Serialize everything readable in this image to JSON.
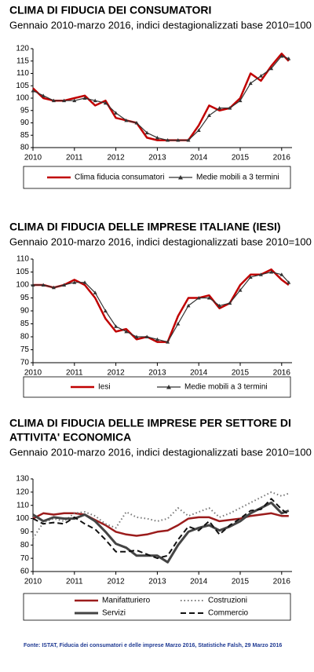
{
  "chart_data": [
    {
      "type": "line",
      "title": [
        "CLIMA DI FIDUCIA DEI CONSUMATORI"
      ],
      "subtitle": "Gennaio 2010-marzo 2016, indici destagionalizzati base 2010=100",
      "x": [
        2010,
        2010.25,
        2010.5,
        2010.75,
        2011,
        2011.25,
        2011.5,
        2011.75,
        2012,
        2012.25,
        2012.5,
        2012.75,
        2013,
        2013.25,
        2013.5,
        2013.75,
        2014,
        2014.25,
        2014.5,
        2014.75,
        2015,
        2015.25,
        2015.5,
        2015.75,
        2016,
        2016.17
      ],
      "series": [
        {
          "name": "Clima fiducia consumatori",
          "color": "#c00000",
          "width": 2.5,
          "values": [
            104,
            100,
            99,
            99,
            100,
            101,
            97,
            99,
            92,
            91,
            90,
            84,
            83,
            83,
            83,
            83,
            89,
            97,
            95,
            96,
            100,
            110,
            107,
            113,
            118,
            115
          ]
        },
        {
          "name": "Medie mobili a 3 termini",
          "color": "#333333",
          "width": 1.2,
          "marker": "triangle",
          "values": [
            103,
            101,
            99,
            99,
            99,
            100,
            99,
            98,
            94,
            91,
            90,
            86,
            84,
            83,
            83,
            83,
            87,
            93,
            96,
            96,
            99,
            106,
            109,
            112,
            117,
            116
          ]
        }
      ],
      "xlim": [
        2010,
        2016.25
      ],
      "xticks": [
        2010,
        2011,
        2012,
        2013,
        2014,
        2015,
        2016
      ],
      "ylim": [
        80,
        120
      ],
      "yticks": [
        80,
        85,
        90,
        95,
        100,
        105,
        110,
        115,
        120
      ]
    },
    {
      "type": "line",
      "title": [
        "CLIMA DI FIDUCIA DELLE IMPRESE ITALIANE (IESI)"
      ],
      "subtitle": "Gennaio 2010-marzo 2016, indici destagionalizzati base 2010=100",
      "x": [
        2010,
        2010.25,
        2010.5,
        2010.75,
        2011,
        2011.25,
        2011.5,
        2011.75,
        2012,
        2012.25,
        2012.5,
        2012.75,
        2013,
        2013.25,
        2013.5,
        2013.75,
        2014,
        2014.25,
        2014.5,
        2014.75,
        2015,
        2015.25,
        2015.5,
        2015.75,
        2016,
        2016.17
      ],
      "series": [
        {
          "name": "Iesi",
          "color": "#c00000",
          "width": 2.5,
          "values": [
            100,
            100,
            99,
            100,
            102,
            100,
            95,
            87,
            82,
            83,
            79,
            80,
            78,
            78,
            88,
            95,
            95,
            96,
            91,
            93,
            100,
            104,
            104,
            106,
            102,
            100
          ]
        },
        {
          "name": "Medie mobili a 3 termini",
          "color": "#333333",
          "width": 1.2,
          "marker": "triangle",
          "values": [
            100,
            100,
            99,
            100,
            101,
            101,
            97,
            90,
            84,
            82,
            80,
            80,
            79,
            78,
            85,
            92,
            95,
            95,
            92,
            93,
            98,
            103,
            104,
            105,
            104,
            101
          ]
        }
      ],
      "xlim": [
        2010,
        2016.25
      ],
      "xticks": [
        2010,
        2011,
        2012,
        2013,
        2014,
        2015,
        2016
      ],
      "ylim": [
        70,
        110
      ],
      "yticks": [
        70,
        75,
        80,
        85,
        90,
        95,
        100,
        105,
        110
      ]
    },
    {
      "type": "line",
      "title": [
        "CLIMA DI FIDUCIA DELLE IMPRESE PER SETTORE DI",
        "ATTIVITA' ECONOMICA"
      ],
      "subtitle": "Gennaio 2010-marzo 2016, indici destagionalizzati base 2010=100",
      "x": [
        2010,
        2010.25,
        2010.5,
        2010.75,
        2011,
        2011.25,
        2011.5,
        2011.75,
        2012,
        2012.25,
        2012.5,
        2012.75,
        2013,
        2013.25,
        2013.5,
        2013.75,
        2014,
        2014.25,
        2014.5,
        2014.75,
        2015,
        2015.25,
        2015.5,
        2015.75,
        2016,
        2016.17
      ],
      "series": [
        {
          "name": "Manifatturiero",
          "color": "#9b1c1c",
          "width": 2.5,
          "values": [
            100,
            104,
            103,
            104,
            104,
            103,
            99,
            95,
            90,
            88,
            87,
            88,
            90,
            91,
            95,
            100,
            101,
            101,
            98,
            99,
            100,
            102,
            103,
            104,
            102,
            102
          ]
        },
        {
          "name": "Costruzioni",
          "color": "#777777",
          "width": 2,
          "dash": "dotted",
          "values": [
            85,
            97,
            100,
            98,
            104,
            105,
            102,
            96,
            93,
            105,
            101,
            100,
            98,
            100,
            108,
            102,
            105,
            108,
            101,
            104,
            108,
            112,
            116,
            120,
            117,
            119
          ]
        },
        {
          "name": "Servizi",
          "color": "#444444",
          "width": 3,
          "values": [
            103,
            98,
            101,
            100,
            100,
            103,
            98,
            90,
            81,
            78,
            72,
            72,
            72,
            67,
            80,
            90,
            93,
            95,
            91,
            94,
            98,
            104,
            108,
            112,
            104,
            106
          ]
        },
        {
          "name": "Commercio",
          "color": "#111111",
          "width": 2,
          "dash": "dashed",
          "values": [
            100,
            96,
            97,
            96,
            101,
            96,
            92,
            84,
            75,
            75,
            76,
            73,
            70,
            72,
            84,
            94,
            91,
            98,
            88,
            95,
            100,
            106,
            107,
            115,
            107,
            103
          ]
        }
      ],
      "xlim": [
        2010,
        2016.25
      ],
      "xticks": [
        2010,
        2011,
        2012,
        2013,
        2014,
        2015,
        2016
      ],
      "ylim": [
        60,
        130
      ],
      "yticks": [
        60,
        70,
        80,
        90,
        100,
        110,
        120,
        130
      ]
    }
  ],
  "source": "Fonte: ISTAT, Fiducia dei consumatori e delle imprese Marzo 2016, Statistiche Falsh, 29 Marzo 2016"
}
